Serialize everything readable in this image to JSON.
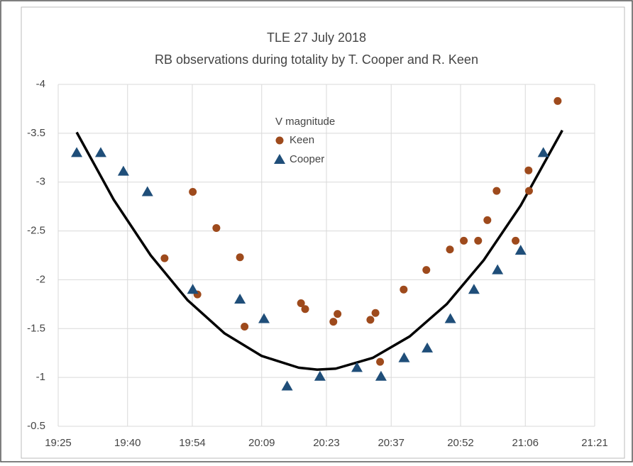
{
  "chart_data": {
    "type": "scatter",
    "title": "TLE 27 July 2018",
    "subtitle": "RB observations during totality by T. Cooper and R. Keen",
    "legend_title": "V magnitude",
    "legend_position": "upper center",
    "xlim": [
      1165,
      1281
    ],
    "xticks": [
      {
        "value": 1165,
        "label": "19:25"
      },
      {
        "value": 1180,
        "label": "19:40"
      },
      {
        "value": 1194,
        "label": "19:54"
      },
      {
        "value": 1209,
        "label": "20:09"
      },
      {
        "value": 1223,
        "label": "20:23"
      },
      {
        "value": 1237,
        "label": "20:37"
      },
      {
        "value": 1252,
        "label": "20:52"
      },
      {
        "value": 1266,
        "label": "21:06"
      },
      {
        "value": 1281,
        "label": "21:21"
      }
    ],
    "ylim": [
      -4,
      -0.5
    ],
    "y_inverted": true,
    "yticks": [
      -4,
      -3.5,
      -3,
      -2.5,
      -2,
      -1.5,
      -1,
      -0.5
    ],
    "grid": true,
    "series": [
      {
        "name": "Keen",
        "color": "#9e4a1c",
        "marker": "circle",
        "x": [
          1188.0,
          1194.1,
          1195.1,
          1199.2,
          1204.3,
          1205.3,
          1217.5,
          1218.4,
          1224.5,
          1225.4,
          1232.5,
          1233.6,
          1234.6,
          1239.7,
          1244.6,
          1249.7,
          1252.7,
          1255.8,
          1257.8,
          1259.8,
          1263.9,
          1266.7,
          1266.8,
          1273.0
        ],
        "values": [
          -2.22,
          -2.9,
          -1.85,
          -2.53,
          -2.23,
          -1.52,
          -1.76,
          -1.7,
          -1.57,
          -1.65,
          -1.59,
          -1.66,
          -1.16,
          -1.9,
          -2.1,
          -2.31,
          -2.4,
          -2.4,
          -2.61,
          -2.91,
          -2.4,
          -3.12,
          -2.91,
          -3.83
        ]
      },
      {
        "name": "Cooper",
        "color": "#1f4e79",
        "marker": "triangle",
        "x": [
          1169.0,
          1174.2,
          1179.1,
          1184.3,
          1194.1,
          1204.3,
          1209.5,
          1214.5,
          1221.6,
          1229.6,
          1234.8,
          1239.8,
          1244.8,
          1249.8,
          1254.9,
          1260.0,
          1265.0,
          1269.9
        ],
        "values": [
          -3.3,
          -3.3,
          -3.11,
          -2.9,
          -1.9,
          -1.8,
          -1.6,
          -0.91,
          -1.01,
          -1.1,
          -1.01,
          -1.2,
          -1.3,
          -1.6,
          -1.9,
          -2.1,
          -2.3,
          -3.3
        ]
      }
    ],
    "fit": {
      "color": "#000000",
      "x": [
        1169,
        1177,
        1185,
        1193,
        1201,
        1209,
        1217,
        1221,
        1225,
        1233,
        1241,
        1249,
        1257,
        1265,
        1274
      ],
      "values": [
        -3.51,
        -2.82,
        -2.25,
        -1.79,
        -1.45,
        -1.22,
        -1.1,
        -1.08,
        -1.09,
        -1.2,
        -1.42,
        -1.75,
        -2.2,
        -2.76,
        -3.53
      ]
    }
  }
}
